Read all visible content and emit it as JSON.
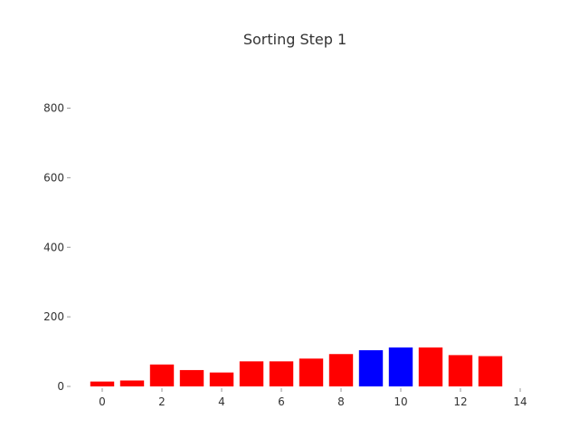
{
  "chart_data": {
    "type": "bar",
    "title": "Sorting Step 1",
    "xlabel": "",
    "ylabel": "",
    "x": [
      0,
      1,
      2,
      3,
      4,
      5,
      6,
      7,
      8,
      9,
      10,
      11,
      12,
      13
    ],
    "values": [
      14,
      17,
      63,
      47,
      40,
      72,
      72,
      80,
      93,
      104,
      112,
      112,
      90,
      87
    ],
    "highlighted_indices": [
      9,
      10
    ],
    "colors": {
      "default": "#ff0000",
      "highlight": "#0000ff"
    },
    "xlim": [
      -1,
      14
    ],
    "ylim": [
      0,
      960
    ],
    "x_ticks": [
      0,
      2,
      4,
      6,
      8,
      10,
      12,
      14
    ],
    "y_ticks": [
      0,
      200,
      400,
      600,
      800
    ],
    "grid": false,
    "legend": "none"
  }
}
